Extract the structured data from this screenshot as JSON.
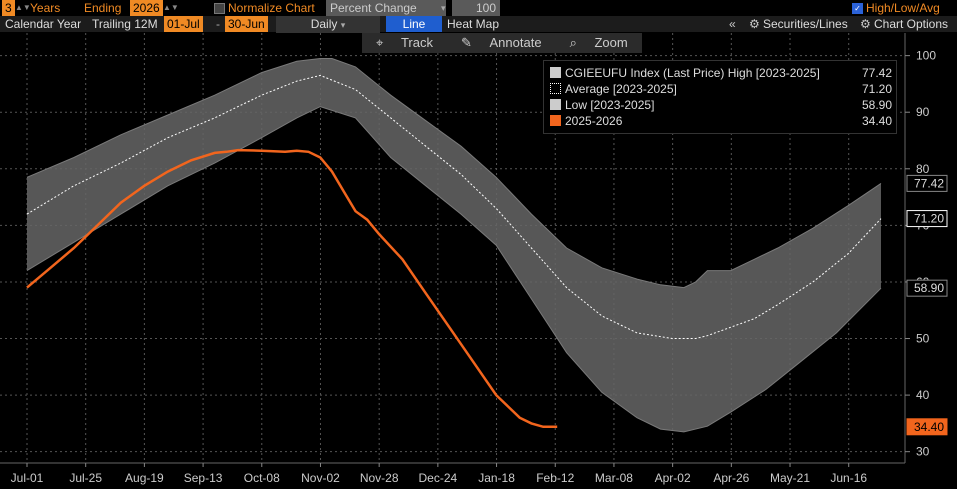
{
  "toolbar": {
    "years_value": "3",
    "years_label": "Years",
    "ending_label": "Ending",
    "ending_value": "2026",
    "normalize_label": "Normalize Chart",
    "normalize_select": "Percent Change",
    "normalize_value": "100",
    "hla_label": "High/Low/Avg"
  },
  "toolbar2": {
    "calendar_year": "Calendar Year",
    "trailing": "Trailing 12M",
    "start_date": "01-Jul",
    "end_date": "30-Jun",
    "period": "Daily",
    "line_btn": "Line",
    "heatmap_btn": "Heat Map",
    "collapse": "«",
    "securities": "Securities/Lines",
    "chart_options": "Chart Options"
  },
  "tools": {
    "track": "Track",
    "annotate": "Annotate",
    "zoom": "Zoom"
  },
  "colors": {
    "orange": "#f2651d",
    "band": "#6e6e6e",
    "grid": "#5a5a5a",
    "background": "#000000",
    "plot_bg": "#000000"
  },
  "legend": {
    "high_label": "CGIEEUFU Index (Last Price) High [2023-2025]",
    "high_value": "77.42",
    "avg_label": "Average  [2023-2025]",
    "avg_value": "71.20",
    "low_label": "Low  [2023-2025]",
    "low_value": "58.90",
    "cur_label": "2025-2026",
    "cur_value": "34.40"
  },
  "chart_data": {
    "type": "line",
    "x_ticks": [
      "Jul-01",
      "Jul-25",
      "Aug-19",
      "Sep-13",
      "Oct-08",
      "Nov-02",
      "Nov-28",
      "Dec-24",
      "Jan-18",
      "Feb-12",
      "Mar-08",
      "Apr-02",
      "Apr-26",
      "May-21",
      "Jun-16"
    ],
    "y_ticks": [
      30,
      40,
      50,
      60,
      70,
      80,
      90,
      100
    ],
    "ylim": [
      28,
      104
    ],
    "days_total": 365,
    "end_labels": {
      "high": "77.42",
      "avg": "71.20",
      "low": "58.90",
      "current": "34.40"
    },
    "series": [
      {
        "name": "CGIEEUFU Index (Last Price) High [2023-2025]",
        "days": [
          0,
          20,
          40,
          60,
          80,
          100,
          115,
          125,
          130,
          140,
          155,
          170,
          185,
          200,
          215,
          230,
          245,
          260,
          270,
          280,
          285,
          290,
          300,
          310,
          320,
          335,
          350,
          364
        ],
        "values": [
          78.5,
          82,
          86,
          89.5,
          93,
          97,
          99,
          99.5,
          99.5,
          98,
          93,
          88.5,
          84,
          78.5,
          72,
          66,
          62.5,
          60.5,
          59.5,
          59,
          60,
          62,
          62,
          64,
          66,
          69.5,
          73.5,
          77.42
        ]
      },
      {
        "name": "Average  [2023-2025]",
        "days": [
          0,
          20,
          40,
          60,
          80,
          100,
          115,
          125,
          140,
          155,
          170,
          185,
          200,
          215,
          230,
          245,
          260,
          275,
          285,
          290,
          300,
          310,
          320,
          335,
          350,
          364
        ],
        "values": [
          72,
          77,
          81,
          85.5,
          89,
          93,
          95.5,
          96.5,
          94,
          89,
          84,
          79,
          73,
          66,
          59,
          54,
          51,
          50,
          50,
          50.5,
          52,
          53.5,
          56,
          60,
          65,
          71.2
        ]
      },
      {
        "name": "Low  [2023-2025]",
        "days": [
          0,
          20,
          40,
          60,
          80,
          100,
          115,
          125,
          140,
          155,
          170,
          185,
          200,
          215,
          230,
          245,
          260,
          270,
          280,
          290,
          300,
          315,
          330,
          345,
          364
        ],
        "values": [
          62,
          67,
          72,
          77,
          81,
          85.5,
          89,
          91,
          89,
          82,
          77,
          72,
          66.5,
          57,
          47.5,
          40.5,
          36,
          34,
          33.5,
          34.5,
          37,
          41,
          46,
          51,
          58.9
        ]
      },
      {
        "name": "2025-2026",
        "days": [
          0,
          10,
          20,
          30,
          40,
          50,
          60,
          70,
          80,
          85,
          90,
          100,
          110,
          115,
          120,
          125,
          130,
          135,
          140,
          145,
          150,
          160,
          170,
          180,
          190,
          200,
          210,
          215,
          220,
          226
        ],
        "values": [
          59,
          62.5,
          66,
          70,
          74,
          77,
          79.5,
          81.5,
          82.8,
          83,
          83.3,
          83.2,
          83,
          83.2,
          83,
          82,
          79.5,
          76,
          72.5,
          71,
          68.5,
          64,
          58,
          52,
          46,
          40,
          36,
          35,
          34.4,
          34.4
        ]
      }
    ]
  }
}
